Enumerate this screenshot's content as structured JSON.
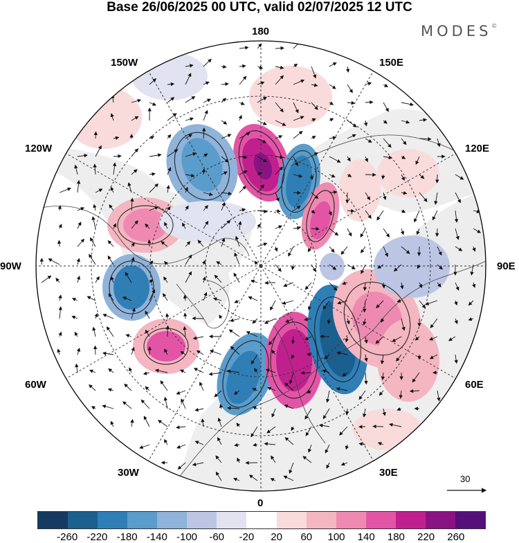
{
  "title": "Base 26/06/2025 00 UTC, valid 02/07/2025 12 UTC",
  "brand": "MODES",
  "brand_mark": "©",
  "longitude_labels": {
    "n": "180",
    "s": "0",
    "e": "90E",
    "w": "90W",
    "ne1": "150E",
    "ne2": "120E",
    "se1": "60E",
    "se2": "30E",
    "nw1": "150W",
    "nw2": "120W",
    "sw1": "60W",
    "sw2": "30W"
  },
  "vector_scale": "30",
  "colorbar": {
    "ticks": [
      "-260",
      "-220",
      "-180",
      "-140",
      "-100",
      "-60",
      "-20",
      "20",
      "60",
      "100",
      "140",
      "180",
      "220",
      "260"
    ],
    "colors": [
      "#163a5f",
      "#1b5f8f",
      "#2f7fb6",
      "#5a9ccb",
      "#8fb3d9",
      "#bcc6e4",
      "#e2e3f1",
      "#ffffff",
      "#f9dbdb",
      "#f4b6c0",
      "#ee8ab1",
      "#e255a6",
      "#c0208e",
      "#8a1383",
      "#55107a"
    ]
  }
}
